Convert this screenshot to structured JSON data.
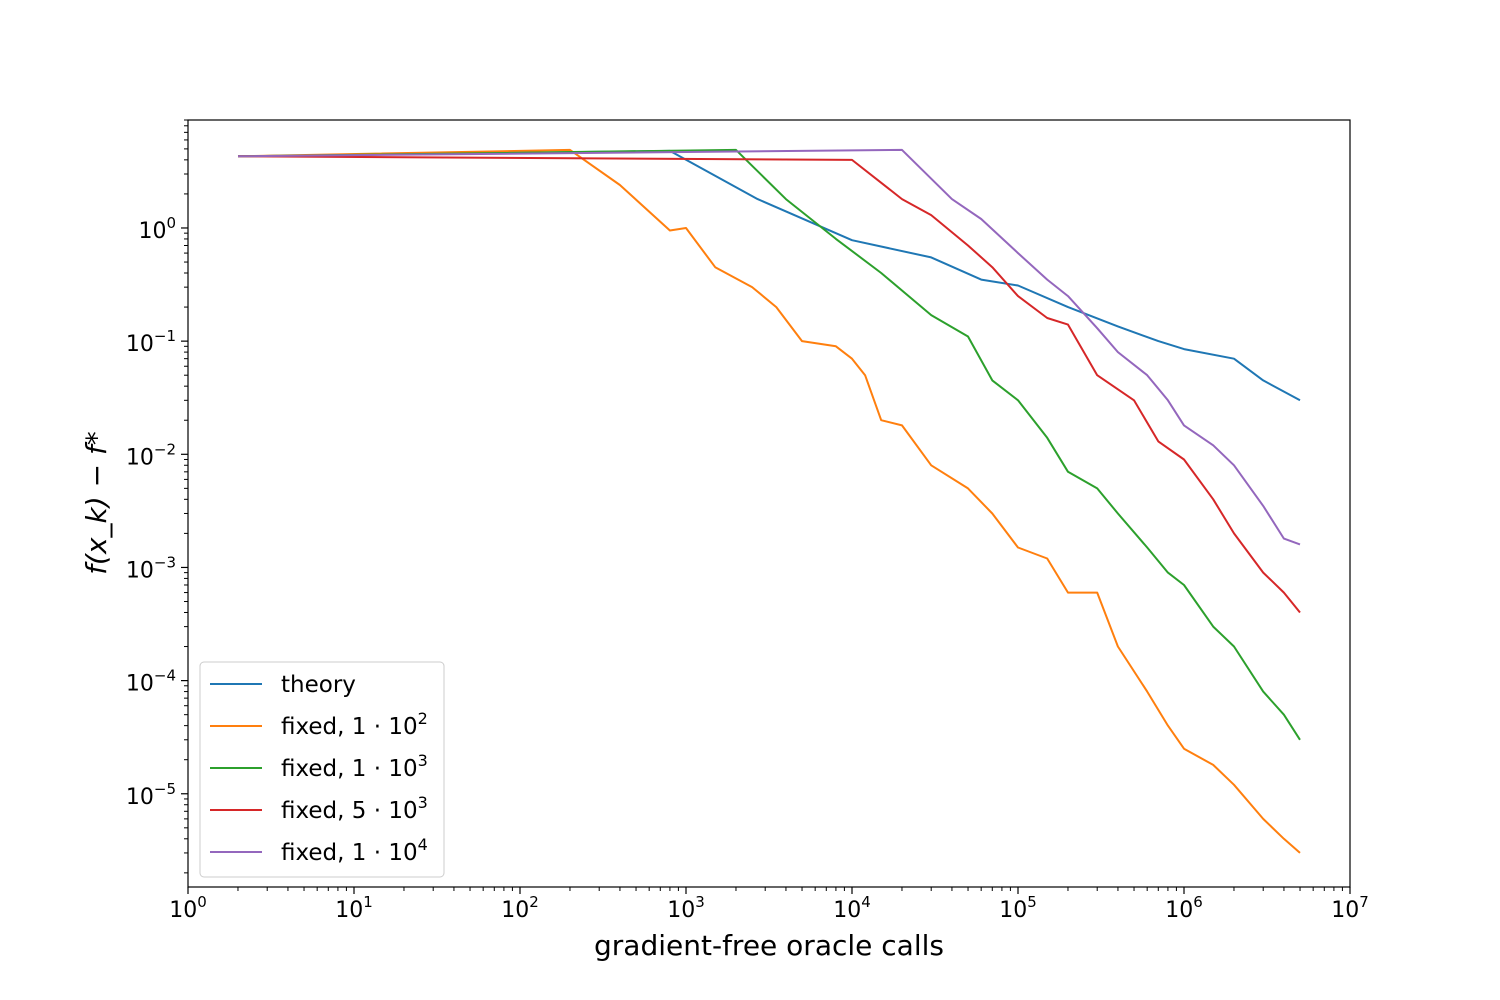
{
  "chart_data": {
    "type": "line",
    "xlabel": "gradient-free oracle calls",
    "ylabel": "f(x_k) − f*",
    "xscale": "log",
    "yscale": "log",
    "xlim": [
      1,
      10000000
    ],
    "ylim": [
      1.5e-06,
      9
    ],
    "grid": false,
    "legend_position": "lower-left",
    "x_ticks": [
      {
        "value": 1,
        "base": "10",
        "exp": "0"
      },
      {
        "value": 10,
        "base": "10",
        "exp": "1"
      },
      {
        "value": 100,
        "base": "10",
        "exp": "2"
      },
      {
        "value": 1000,
        "base": "10",
        "exp": "3"
      },
      {
        "value": 10000,
        "base": "10",
        "exp": "4"
      },
      {
        "value": 100000,
        "base": "10",
        "exp": "5"
      },
      {
        "value": 1000000,
        "base": "10",
        "exp": "6"
      },
      {
        "value": 10000000,
        "base": "10",
        "exp": "7"
      }
    ],
    "y_ticks": [
      {
        "value": 1,
        "base": "10",
        "exp": "0"
      },
      {
        "value": 0.1,
        "base": "10",
        "exp": "−1"
      },
      {
        "value": 0.01,
        "base": "10",
        "exp": "−2"
      },
      {
        "value": 0.001,
        "base": "10",
        "exp": "−3"
      },
      {
        "value": 0.0001,
        "base": "10",
        "exp": "−4"
      },
      {
        "value": 1e-05,
        "base": "10",
        "exp": "−5"
      }
    ],
    "series": [
      {
        "name": "theory",
        "label_main": "theory",
        "label_exp": "",
        "color": "#1f77b4",
        "points": [
          [
            2,
            4.3
          ],
          [
            800,
            4.8
          ],
          [
            2700,
            1.8
          ],
          [
            10000,
            0.78
          ],
          [
            30000,
            0.55
          ],
          [
            60000,
            0.35
          ],
          [
            100000,
            0.31
          ],
          [
            200000,
            0.2
          ],
          [
            400000,
            0.135
          ],
          [
            700000,
            0.1
          ],
          [
            1000000,
            0.085
          ],
          [
            2000000,
            0.07
          ],
          [
            3000000,
            0.045
          ],
          [
            5000000,
            0.03
          ]
        ]
      },
      {
        "name": "fixed, 1·10^2",
        "label_main": "fixed, 1 · 10",
        "label_exp": "2",
        "color": "#ff7f0e",
        "points": [
          [
            2,
            4.3
          ],
          [
            200,
            4.9
          ],
          [
            400,
            2.4
          ],
          [
            800,
            0.95
          ],
          [
            1000,
            1.0
          ],
          [
            1500,
            0.45
          ],
          [
            2500,
            0.3
          ],
          [
            3500,
            0.2
          ],
          [
            5000,
            0.1
          ],
          [
            8000,
            0.09
          ],
          [
            10000,
            0.07
          ],
          [
            12000,
            0.05
          ],
          [
            15000,
            0.02
          ],
          [
            20000,
            0.018
          ],
          [
            30000,
            0.008
          ],
          [
            50000,
            0.005
          ],
          [
            70000,
            0.003
          ],
          [
            100000,
            0.0015
          ],
          [
            150000,
            0.0012
          ],
          [
            200000,
            0.0006
          ],
          [
            300000,
            0.0006
          ],
          [
            400000,
            0.0002
          ],
          [
            600000,
            8e-05
          ],
          [
            800000,
            4e-05
          ],
          [
            1000000,
            2.5e-05
          ],
          [
            1500000,
            1.8e-05
          ],
          [
            2000000,
            1.2e-05
          ],
          [
            3000000,
            6e-06
          ],
          [
            4000000,
            4e-06
          ],
          [
            5000000,
            3e-06
          ]
        ]
      },
      {
        "name": "fixed, 1·10^3",
        "label_main": "fixed, 1 · 10",
        "label_exp": "3",
        "color": "#2ca02c",
        "points": [
          [
            2,
            4.3
          ],
          [
            2000,
            4.9
          ],
          [
            4000,
            1.8
          ],
          [
            8000,
            0.8
          ],
          [
            15000,
            0.4
          ],
          [
            30000,
            0.17
          ],
          [
            50000,
            0.11
          ],
          [
            70000,
            0.045
          ],
          [
            100000,
            0.03
          ],
          [
            150000,
            0.014
          ],
          [
            200000,
            0.007
          ],
          [
            300000,
            0.005
          ],
          [
            400000,
            0.003
          ],
          [
            600000,
            0.0015
          ],
          [
            800000,
            0.0009
          ],
          [
            1000000,
            0.0007
          ],
          [
            1500000,
            0.0003
          ],
          [
            2000000,
            0.0002
          ],
          [
            3000000,
            8e-05
          ],
          [
            4000000,
            5e-05
          ],
          [
            5000000,
            3e-05
          ]
        ]
      },
      {
        "name": "fixed, 5·10^3",
        "label_main": "fixed, 5 · 10",
        "label_exp": "3",
        "color": "#d62728",
        "points": [
          [
            2,
            4.3
          ],
          [
            10000,
            4.0
          ],
          [
            20000,
            1.8
          ],
          [
            30000,
            1.3
          ],
          [
            50000,
            0.7
          ],
          [
            70000,
            0.45
          ],
          [
            100000,
            0.25
          ],
          [
            150000,
            0.16
          ],
          [
            200000,
            0.14
          ],
          [
            300000,
            0.05
          ],
          [
            500000,
            0.03
          ],
          [
            700000,
            0.013
          ],
          [
            1000000,
            0.009
          ],
          [
            1500000,
            0.004
          ],
          [
            2000000,
            0.002
          ],
          [
            3000000,
            0.0009
          ],
          [
            4000000,
            0.0006
          ],
          [
            5000000,
            0.0004
          ]
        ]
      },
      {
        "name": "fixed, 1·10^4",
        "label_main": "fixed, 1 · 10",
        "label_exp": "4",
        "color": "#9467bd",
        "points": [
          [
            2,
            4.3
          ],
          [
            20000,
            4.9
          ],
          [
            40000,
            1.8
          ],
          [
            60000,
            1.2
          ],
          [
            100000,
            0.6
          ],
          [
            150000,
            0.35
          ],
          [
            200000,
            0.25
          ],
          [
            300000,
            0.13
          ],
          [
            400000,
            0.08
          ],
          [
            600000,
            0.05
          ],
          [
            800000,
            0.03
          ],
          [
            1000000,
            0.018
          ],
          [
            1500000,
            0.012
          ],
          [
            2000000,
            0.008
          ],
          [
            3000000,
            0.0035
          ],
          [
            4000000,
            0.0018
          ],
          [
            5000000,
            0.0016
          ]
        ]
      }
    ]
  }
}
